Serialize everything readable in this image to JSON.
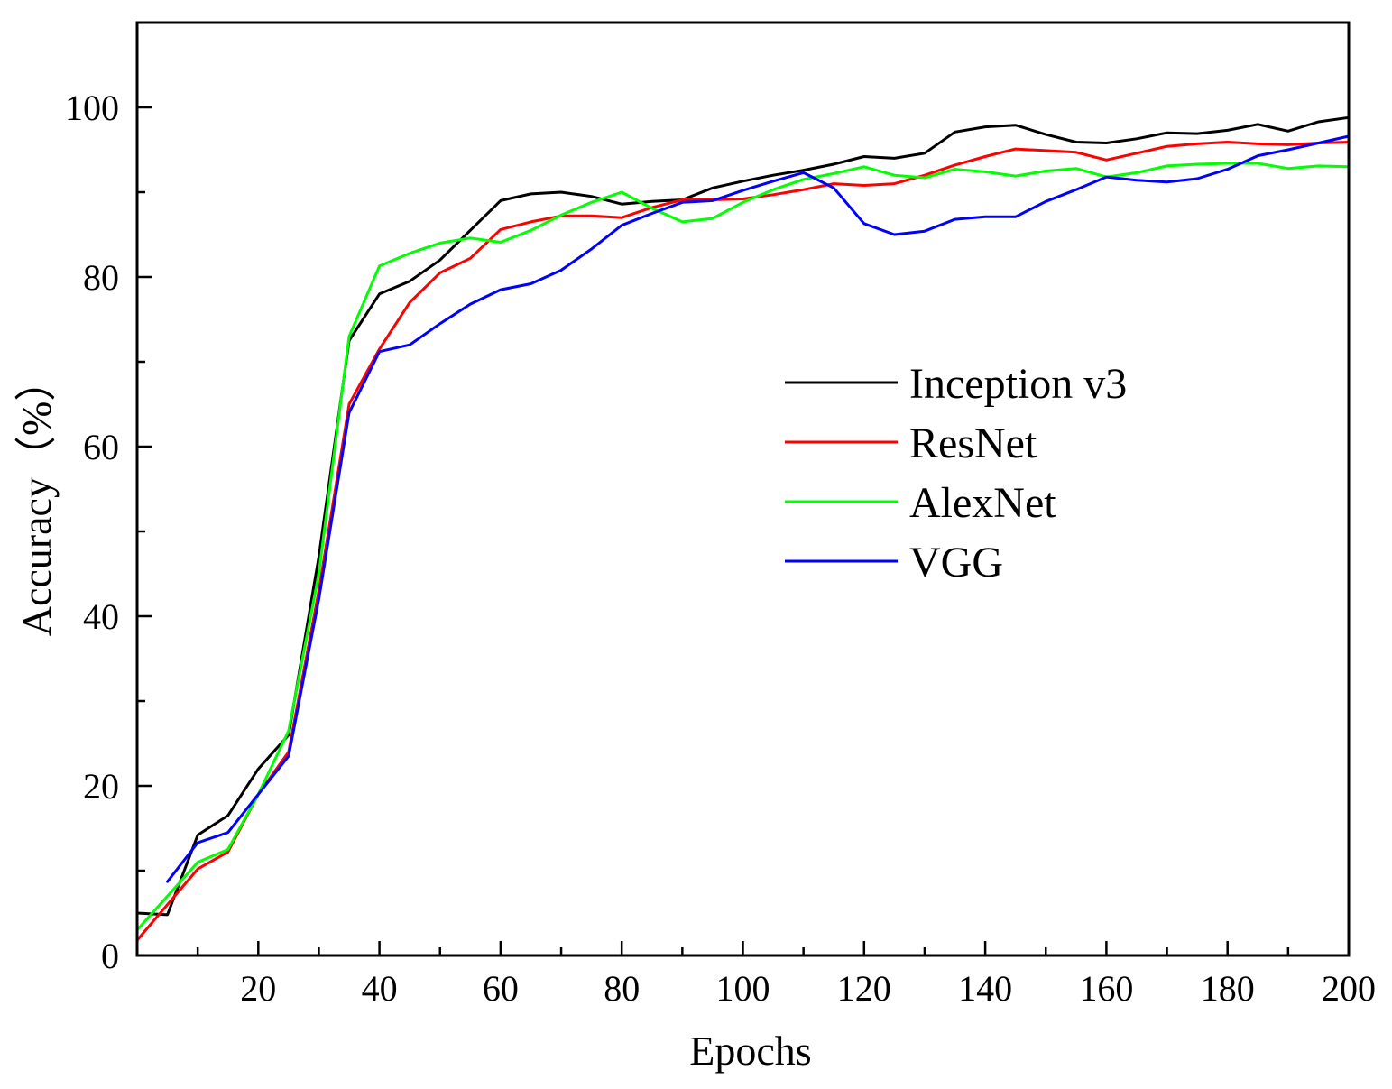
{
  "chart_data": {
    "type": "line",
    "title": "",
    "xlabel": "Epochs",
    "ylabel": "Accuracy（%）",
    "xlim": [
      0,
      200
    ],
    "ylim": [
      0,
      110
    ],
    "x_major_ticks": [
      20,
      40,
      60,
      80,
      100,
      120,
      140,
      160,
      180,
      200
    ],
    "x_minor_ticks": [
      10,
      30,
      50,
      70,
      90,
      110,
      130,
      150,
      170,
      190
    ],
    "y_major_ticks": [
      0,
      20,
      40,
      60,
      80,
      100
    ],
    "y_minor_ticks": [
      10,
      30,
      50,
      70,
      90
    ],
    "grid": false,
    "legend_position": "center-right",
    "series": [
      {
        "name": "Inception v3",
        "color": "#000000",
        "x": [
          0,
          5,
          10,
          15,
          20,
          25,
          30,
          35,
          40,
          45,
          50,
          55,
          60,
          65,
          70,
          75,
          80,
          85,
          90,
          95,
          100,
          105,
          110,
          115,
          120,
          125,
          130,
          135,
          140,
          145,
          150,
          155,
          160,
          165,
          170,
          175,
          180,
          185,
          190,
          195,
          200
        ],
        "y": [
          5.0,
          4.8,
          14.2,
          16.5,
          22.0,
          26.0,
          47.0,
          72.5,
          78.0,
          79.5,
          82.0,
          85.5,
          89.0,
          89.8,
          90.0,
          89.5,
          88.6,
          88.9,
          89.1,
          90.5,
          91.3,
          92.0,
          92.6,
          93.3,
          94.2,
          94.0,
          94.6,
          97.1,
          97.7,
          97.9,
          96.8,
          95.9,
          95.8,
          96.3,
          97.0,
          96.9,
          97.3,
          98.0,
          97.2,
          98.3,
          98.8
        ]
      },
      {
        "name": "ResNet",
        "color": "#ff0000",
        "x": [
          0,
          5,
          10,
          15,
          20,
          25,
          30,
          35,
          40,
          45,
          50,
          55,
          60,
          65,
          70,
          75,
          80,
          85,
          90,
          95,
          100,
          105,
          110,
          115,
          120,
          125,
          130,
          135,
          140,
          145,
          150,
          155,
          160,
          165,
          170,
          175,
          180,
          185,
          190,
          195,
          200
        ],
        "y": [
          1.8,
          6.0,
          10.2,
          12.2,
          19.0,
          24.0,
          43.0,
          65.0,
          71.5,
          77.0,
          80.5,
          82.2,
          85.6,
          86.5,
          87.2,
          87.2,
          87.0,
          88.2,
          89.1,
          89.1,
          89.2,
          89.7,
          90.3,
          91.0,
          90.8,
          91.0,
          92.0,
          93.2,
          94.2,
          95.1,
          94.9,
          94.7,
          93.8,
          94.6,
          95.4,
          95.7,
          95.9,
          95.7,
          95.6,
          95.8,
          95.9
        ]
      },
      {
        "name": "AlexNet",
        "color": "#00ff00",
        "x": [
          0,
          5,
          10,
          15,
          20,
          25,
          30,
          35,
          40,
          45,
          50,
          55,
          60,
          65,
          70,
          75,
          80,
          85,
          90,
          95,
          100,
          105,
          110,
          115,
          120,
          125,
          130,
          135,
          140,
          145,
          150,
          155,
          160,
          165,
          170,
          175,
          180,
          185,
          190,
          195,
          200
        ],
        "y": [
          3.0,
          7.0,
          11.0,
          12.5,
          19.0,
          26.5,
          45.0,
          73.0,
          81.3,
          82.8,
          84.0,
          84.6,
          84.1,
          85.5,
          87.3,
          88.8,
          90.0,
          88.1,
          86.5,
          86.9,
          88.8,
          90.3,
          91.5,
          92.2,
          93.0,
          92.0,
          91.7,
          92.7,
          92.4,
          91.9,
          92.5,
          92.8,
          91.8,
          92.3,
          93.1,
          93.3,
          93.4,
          93.4,
          92.8,
          93.1,
          93.0
        ]
      },
      {
        "name": "VGG",
        "color": "#0000ff",
        "x": [
          5,
          10,
          15,
          20,
          25,
          30,
          35,
          40,
          45,
          50,
          55,
          60,
          65,
          70,
          75,
          80,
          85,
          90,
          95,
          100,
          105,
          110,
          115,
          120,
          125,
          130,
          135,
          140,
          145,
          150,
          155,
          160,
          165,
          170,
          175,
          180,
          185,
          190,
          195,
          200
        ],
        "y": [
          8.7,
          13.3,
          14.5,
          19.0,
          23.5,
          42.0,
          64.0,
          71.2,
          72.0,
          74.5,
          76.8,
          78.5,
          79.2,
          80.8,
          83.3,
          86.1,
          87.5,
          88.8,
          89.0,
          90.2,
          91.3,
          92.3,
          90.5,
          86.3,
          85.0,
          85.4,
          86.8,
          87.1,
          87.1,
          88.9,
          90.3,
          91.8,
          91.4,
          91.2,
          91.6,
          92.7,
          94.3,
          95.0,
          95.8,
          96.6
        ]
      }
    ]
  }
}
